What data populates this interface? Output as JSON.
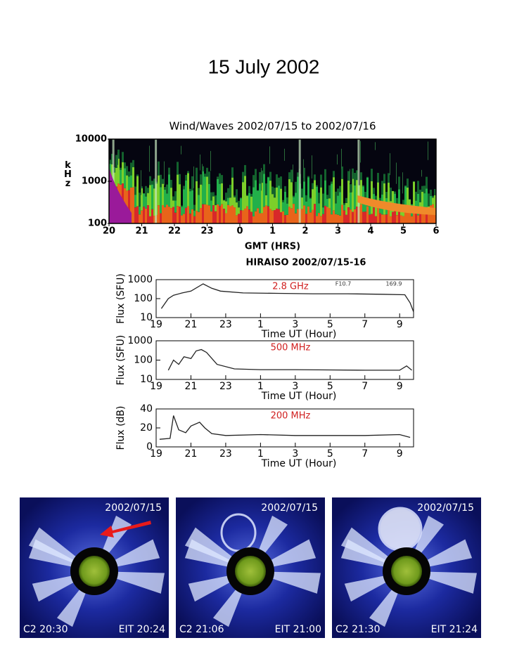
{
  "title": "15 July 2002",
  "chart_data": [
    {
      "type": "spectrogram",
      "title": "Wind/Waves 2002/07/15 to 2002/07/16",
      "xlabel": "GMT (HRS)",
      "ylabel": "kHz",
      "xlim": [
        20,
        30
      ],
      "xticks": [
        20,
        21,
        22,
        23,
        {
          "value": 24,
          "label": "0"
        },
        {
          "value": 25,
          "label": "1"
        },
        {
          "value": 26,
          "label": "2"
        },
        {
          "value": 27,
          "label": "3"
        },
        {
          "value": 28,
          "label": "4"
        },
        {
          "value": 29,
          "label": "5"
        },
        {
          "value": 30,
          "label": "6"
        }
      ],
      "ylim": [
        100,
        10000
      ],
      "yticks": [
        100,
        1000,
        10000
      ],
      "log_y": true
    },
    {
      "type": "line",
      "title": "HIRAISO 2002/07/15-16",
      "annotations": [
        "2.8 GHz",
        "F10.7",
        "169.9"
      ],
      "xlabel": "Time UT (Hour)",
      "ylabel": "Flux (SFU)",
      "color": "#222222",
      "log_y": true,
      "x": [
        19.3,
        19.7,
        20.0,
        20.5,
        21.0,
        21.7,
        22.2,
        22.7,
        24,
        26,
        28,
        30,
        32,
        33.3,
        33.6,
        33.8
      ],
      "values": [
        30,
        100,
        150,
        200,
        250,
        600,
        350,
        250,
        200,
        190,
        180,
        180,
        170,
        160,
        60,
        20
      ],
      "xlim": [
        19,
        33.8
      ],
      "xticks": [
        19,
        21,
        23,
        {
          "value": 25,
          "label": "1"
        },
        {
          "value": 27,
          "label": "3"
        },
        {
          "value": 29,
          "label": "5"
        },
        {
          "value": 31,
          "label": "7"
        },
        {
          "value": 33,
          "label": "9"
        }
      ],
      "ylim": [
        10,
        1000
      ],
      "yticks": [
        10,
        100,
        1000
      ]
    },
    {
      "type": "line",
      "annotations": [
        "500 MHz"
      ],
      "xlabel": "Time UT (Hour)",
      "ylabel": "Flux (SFU)",
      "color": "#222222",
      "log_y": true,
      "x": [
        19.7,
        20.0,
        20.3,
        20.6,
        21.0,
        21.3,
        21.6,
        21.9,
        22.5,
        23.5,
        25,
        27,
        29,
        31,
        33,
        33.4,
        33.7
      ],
      "values": [
        30,
        100,
        60,
        150,
        120,
        300,
        350,
        250,
        60,
        35,
        32,
        32,
        31,
        30,
        30,
        50,
        30
      ],
      "xlim": [
        19,
        33.8
      ],
      "xticks": [
        19,
        21,
        23,
        {
          "value": 25,
          "label": "1"
        },
        {
          "value": 27,
          "label": "3"
        },
        {
          "value": 29,
          "label": "5"
        },
        {
          "value": 31,
          "label": "7"
        },
        {
          "value": 33,
          "label": "9"
        }
      ],
      "ylim": [
        10,
        1000
      ],
      "yticks": [
        10,
        100,
        1000
      ]
    },
    {
      "type": "line",
      "annotations": [
        "200 MHz"
      ],
      "xlabel": "Time UT (Hour)",
      "ylabel": "Flux (dB)",
      "color": "#222222",
      "log_y": false,
      "x": [
        19.2,
        19.8,
        20.0,
        20.3,
        20.7,
        21.0,
        21.5,
        21.8,
        22.2,
        23,
        25,
        27,
        29,
        31,
        33,
        33.6
      ],
      "values": [
        8,
        9,
        33,
        18,
        15,
        22,
        26,
        20,
        14,
        12,
        13,
        12,
        12,
        12,
        13,
        10
      ],
      "xlim": [
        19,
        33.8
      ],
      "xticks": [
        19,
        21,
        23,
        {
          "value": 25,
          "label": "1"
        },
        {
          "value": 27,
          "label": "3"
        },
        {
          "value": 29,
          "label": "5"
        },
        {
          "value": 31,
          "label": "7"
        },
        {
          "value": 33,
          "label": "9"
        }
      ],
      "ylim": [
        0,
        40
      ],
      "yticks": [
        0,
        20,
        40
      ]
    }
  ],
  "images": [
    {
      "date": "2002/07/15",
      "c2": "C2 20:30",
      "eit": "EIT 20:24"
    },
    {
      "date": "2002/07/15",
      "c2": "C2 21:06",
      "eit": "EIT 21:00"
    },
    {
      "date": "2002/07/15",
      "c2": "C2 21:30",
      "eit": "EIT 21:24"
    }
  ]
}
